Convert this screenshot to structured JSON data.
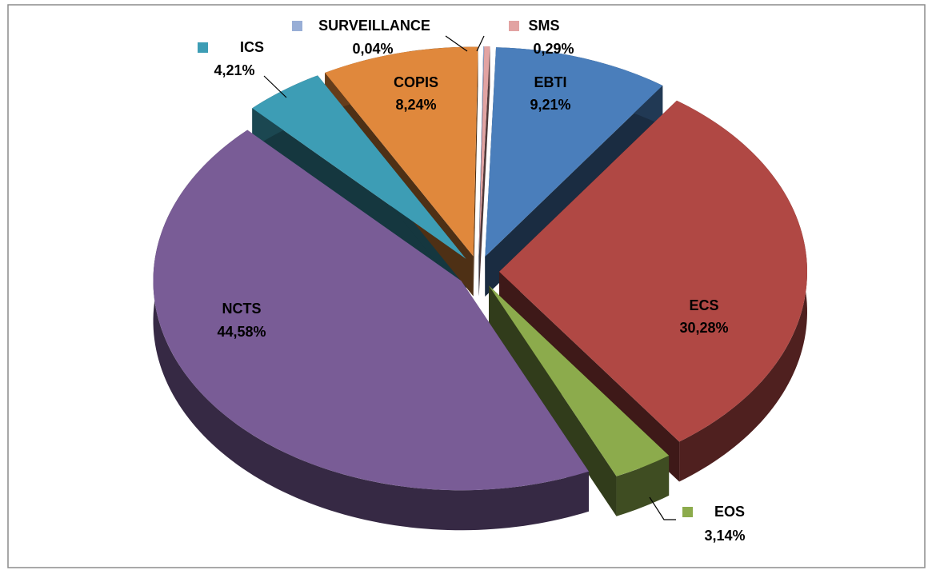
{
  "chart_data": {
    "type": "pie3d",
    "categories": [
      "SMS",
      "EBTI",
      "ECS",
      "EOS",
      "NCTS",
      "ICS",
      "COPIS",
      "SURVEILLANCE"
    ],
    "values": [
      0.29,
      9.21,
      30.28,
      3.14,
      44.58,
      4.21,
      8.24,
      0.04
    ],
    "value_labels": [
      "0,29%",
      "9,21%",
      "30,28%",
      "3,14%",
      "44,58%",
      "4,21%",
      "8,24%",
      "0,04%"
    ],
    "colors": [
      "#e2a3a2",
      "#4a7ebb",
      "#b04844",
      "#8cab4c",
      "#795c96",
      "#3d9db5",
      "#e0883c",
      "#98aed6"
    ]
  }
}
